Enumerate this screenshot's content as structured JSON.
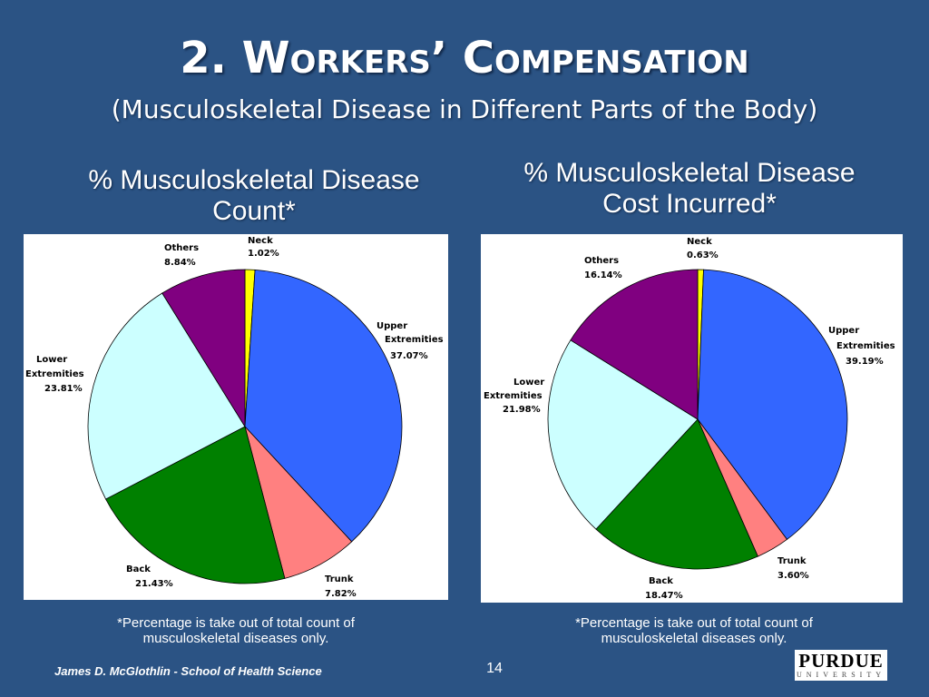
{
  "slide": {
    "title": "2.  Workers’ Compensation",
    "subtitle": "(Musculoskeletal Disease in Different Parts of the Body)",
    "footer": "James D. McGlothlin - School of Health Science",
    "page_number": "14",
    "logo": {
      "word": "PURDUE",
      "sub": "UNIVERSITY"
    }
  },
  "charts": [
    {
      "title_line1": "% Musculoskeletal Disease",
      "title_line2": "Count*",
      "note_line1": "*Percentage is take out of total count of",
      "note_line2": "musculoskeletal diseases only."
    },
    {
      "title_line1": "% Musculoskeletal Disease",
      "title_line2": "Cost Incurred*",
      "note_line1": "*Percentage is take out of total count of",
      "note_line2": "musculoskeletal diseases only."
    }
  ],
  "chart_data": [
    {
      "type": "pie",
      "title": "% Musculoskeletal Disease Count*",
      "slices": [
        {
          "label": "Neck",
          "value": 1.02,
          "display": "1.02%",
          "color": "#ffff00"
        },
        {
          "label": "Upper Extremities",
          "value": 37.07,
          "display": "37.07%",
          "color": "#3366ff"
        },
        {
          "label": "Trunk",
          "value": 7.82,
          "display": "7.82%",
          "color": "#ff8080"
        },
        {
          "label": "Back",
          "value": 21.43,
          "display": "21.43%",
          "color": "#008000"
        },
        {
          "label": "Lower Extremities",
          "value": 23.81,
          "display": "23.81%",
          "color": "#ccffff"
        },
        {
          "label": "Others",
          "value": 8.84,
          "display": "8.84%",
          "color": "#800080"
        }
      ]
    },
    {
      "type": "pie",
      "title": "% Musculoskeletal Disease Cost Incurred*",
      "slices": [
        {
          "label": "Neck",
          "value": 0.63,
          "display": "0.63%",
          "color": "#ffff00"
        },
        {
          "label": "Upper Extremities",
          "value": 39.19,
          "display": "39.19%",
          "color": "#3366ff"
        },
        {
          "label": "Trunk",
          "value": 3.6,
          "display": "3.60%",
          "color": "#ff8080"
        },
        {
          "label": "Back",
          "value": 18.47,
          "display": "18.47%",
          "color": "#008000"
        },
        {
          "label": "Lower Extremities",
          "value": 21.98,
          "display": "21.98%",
          "color": "#ccffff"
        },
        {
          "label": "Others",
          "value": 16.14,
          "display": "16.14%",
          "color": "#800080"
        }
      ]
    }
  ]
}
